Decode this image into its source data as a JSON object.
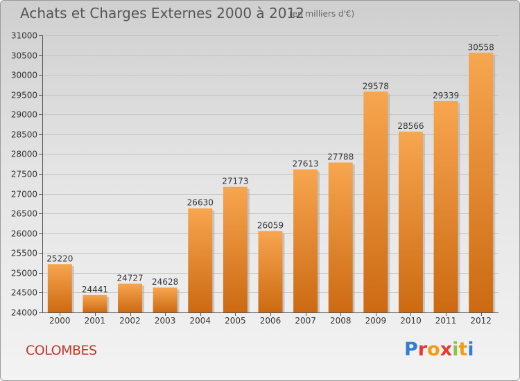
{
  "header": {
    "title": "Achats et Charges Externes 2000 à 2012",
    "subtitle": "(en milliers d'€)"
  },
  "footer": {
    "city": "COLOMBES",
    "logo_letters": [
      "P",
      "r",
      "o",
      "x",
      "i",
      "t",
      "i"
    ]
  },
  "colors": {
    "bar_top": "#f7a64f",
    "bar_bottom": "#cc6a12",
    "title": "#555555",
    "city": "#c0392b",
    "logo": [
      "#2f7fd0",
      "#e53935",
      "#f39c12",
      "#e53935",
      "#8bc34a",
      "#f39c12",
      "#2f7fd0"
    ]
  },
  "chart_data": {
    "type": "bar",
    "title": "Achats et Charges Externes 2000 à 2012",
    "subtitle": "(en milliers d'€)",
    "categories": [
      "2000",
      "2001",
      "2002",
      "2003",
      "2004",
      "2005",
      "2006",
      "2007",
      "2008",
      "2009",
      "2010",
      "2011",
      "2012"
    ],
    "values": [
      25220,
      24441,
      24727,
      24628,
      26630,
      27173,
      26059,
      27613,
      27788,
      29578,
      28566,
      29339,
      30558
    ],
    "ylim": [
      24000,
      31000
    ],
    "yticks": [
      24000,
      24500,
      25000,
      25500,
      26000,
      26500,
      27000,
      27500,
      28000,
      28500,
      29000,
      29500,
      30000,
      30500,
      31000
    ],
    "xlabel": "",
    "ylabel": "",
    "grid": true,
    "legend": "none"
  }
}
